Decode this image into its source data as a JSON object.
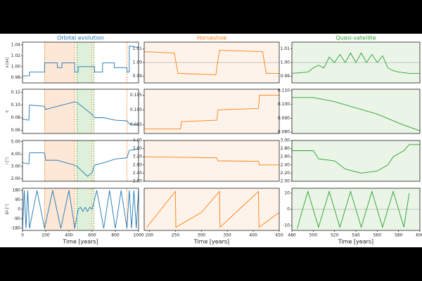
{
  "chart_data": [
    {
      "type": "line",
      "title": "Orbital evolution",
      "ylabel": "a [au]",
      "color": "#1f77b4",
      "xlim": [
        0,
        1000
      ],
      "ylim": [
        0.97,
        1.045
      ],
      "yticks": [
        0.98,
        {
          "value": 1,
          "label": "1.00"
        },
        1.02,
        1.04
      ],
      "x": [
        0,
        60,
        60,
        190,
        190,
        300,
        300,
        340,
        340,
        450,
        450,
        480,
        480,
        620,
        620,
        690,
        690,
        790,
        790,
        900,
        900,
        920,
        920,
        1000
      ],
      "values": [
        0.983,
        0.983,
        0.99,
        0.99,
        1.007,
        1.007,
        0.998,
        0.998,
        1.007,
        1.007,
        0.99,
        0.99,
        1.0,
        1.0,
        0.99,
        0.99,
        1.007,
        1.007,
        0.998,
        0.998,
        0.99,
        0.99,
        1.038,
        1.035
      ],
      "spans": [
        {
          "range": [
            190,
            450
          ],
          "color": "#fde7d7"
        },
        {
          "range": [
            470,
            600
          ],
          "color": "#dff0da"
        }
      ],
      "vlines": [
        {
          "x": 190,
          "color": "#ff7f0e"
        },
        {
          "x": 450,
          "color": "#ff7f0e"
        },
        {
          "x": 470,
          "color": "#2ca02c"
        },
        {
          "x": 600,
          "color": "#ff7f0e"
        },
        {
          "x": 615,
          "color": "#2ca02c"
        },
        {
          "x": 900,
          "color": "#ff7f0e"
        }
      ]
    },
    {
      "type": "line",
      "title": "Horseshoe",
      "color": "#ff7f0e",
      "background": "#fef3ea",
      "hline": 1,
      "xlim": [
        190,
        450
      ],
      "ylim": [
        0.985,
        1.015
      ],
      "yticks": [
        0.99,
        {
          "value": 1,
          "label": "1.00"
        },
        1.01
      ],
      "x": [
        190,
        248,
        255,
        328,
        335,
        418,
        425,
        450
      ],
      "values": [
        1.008,
        1.007,
        0.992,
        0.991,
        1.009,
        1.008,
        0.992,
        0.992
      ]
    },
    {
      "type": "line",
      "title": "Quasi-satellite",
      "color": "#2ca02c",
      "background": "#eaf5e8",
      "hline": 1,
      "xlim": [
        480,
        600
      ],
      "ylim": [
        0.985,
        1.015
      ],
      "yticks": [
        0.99,
        {
          "value": 1,
          "label": "1.00"
        },
        1.01
      ],
      "x": [
        480,
        495,
        500,
        505,
        510,
        515,
        520,
        525,
        530,
        535,
        540,
        545,
        550,
        555,
        560,
        565,
        570,
        575,
        580,
        590,
        600
      ],
      "values": [
        0.992,
        0.993,
        0.996,
        0.998,
        0.996,
        1.004,
        1.0,
        1.006,
        1.0,
        1.007,
        1.0,
        1.007,
        1.0,
        1.006,
        1.0,
        1.005,
        0.996,
        0.994,
        0.993,
        0.992,
        0.992
      ]
    },
    {
      "type": "line",
      "ylabel": "e",
      "color": "#1f77b4",
      "xlim": [
        0,
        1000
      ],
      "ylim": [
        0.055,
        0.125
      ],
      "yticks": [
        {
          "value": 0.06,
          "label": "0.06"
        },
        {
          "value": 0.08,
          "label": "0.08"
        },
        {
          "value": 0.1,
          "label": "0.10"
        },
        0.12
      ],
      "x": [
        0,
        55,
        60,
        190,
        200,
        300,
        450,
        470,
        600,
        620,
        700,
        800,
        900,
        920,
        1000
      ],
      "values": [
        0.078,
        0.076,
        0.1,
        0.098,
        0.093,
        0.098,
        0.105,
        0.104,
        0.085,
        0.08,
        0.08,
        0.076,
        0.075,
        0.07,
        0.068
      ],
      "spans": [
        {
          "range": [
            190,
            450
          ],
          "color": "#fde7d7"
        },
        {
          "range": [
            470,
            600
          ],
          "color": "#dff0da"
        }
      ],
      "vlines": [
        {
          "x": 190,
          "color": "#ff7f0e"
        },
        {
          "x": 450,
          "color": "#ff7f0e"
        },
        {
          "x": 470,
          "color": "#2ca02c"
        },
        {
          "x": 600,
          "color": "#ff7f0e"
        },
        {
          "x": 615,
          "color": "#2ca02c"
        },
        {
          "x": 900,
          "color": "#ff7f0e"
        }
      ]
    },
    {
      "type": "line",
      "color": "#ff7f0e",
      "background": "#fef3ea",
      "xlim": [
        190,
        450
      ],
      "ylim": [
        0.092,
        0.107
      ],
      "yticks": [
        0.095,
        {
          "value": 0.1,
          "label": "0.100"
        },
        0.105
      ],
      "x": [
        190,
        260,
        262,
        330,
        332,
        410,
        412,
        450
      ],
      "values": [
        0.0935,
        0.0935,
        0.096,
        0.0965,
        0.1,
        0.1005,
        0.105,
        0.105
      ]
    },
    {
      "type": "line",
      "color": "#2ca02c",
      "background": "#eaf5e8",
      "xlim": [
        480,
        600
      ],
      "ylim": [
        0.079,
        0.111
      ],
      "yticks": [
        {
          "value": 0.08,
          "label": "0.080"
        },
        {
          "value": 0.09,
          "label": "0.090"
        },
        {
          "value": 0.1,
          "label": "0.100"
        },
        {
          "value": 0.11,
          "label": "0.110"
        }
      ],
      "x": [
        480,
        500,
        520,
        560,
        585,
        600
      ],
      "values": [
        0.105,
        0.105,
        0.102,
        0.093,
        0.085,
        0.081
      ]
    },
    {
      "type": "line",
      "ylabel": "i [°]",
      "color": "#1f77b4",
      "xlim": [
        0,
        1000
      ],
      "ylim": [
        1.8,
        5.1
      ],
      "yticks": [
        {
          "value": 2,
          "label": "2.00"
        },
        {
          "value": 3,
          "label": "3.00"
        },
        {
          "value": 4,
          "label": "4.00"
        },
        {
          "value": 5,
          "label": "5.00"
        }
      ],
      "x": [
        0,
        55,
        60,
        190,
        200,
        300,
        450,
        470,
        560,
        600,
        620,
        700,
        800,
        900,
        920,
        1000
      ],
      "values": [
        3.3,
        3.2,
        4.1,
        4.1,
        3.5,
        3.5,
        3.1,
        3.0,
        2.2,
        2.5,
        3.1,
        3.3,
        3.6,
        3.7,
        4.3,
        4.4
      ],
      "spans": [
        {
          "range": [
            190,
            450
          ],
          "color": "#fde7d7"
        },
        {
          "range": [
            470,
            600
          ],
          "color": "#dff0da"
        }
      ],
      "vlines": [
        {
          "x": 190,
          "color": "#ff7f0e"
        },
        {
          "x": 450,
          "color": "#ff7f0e"
        },
        {
          "x": 470,
          "color": "#2ca02c"
        },
        {
          "x": 600,
          "color": "#ff7f0e"
        },
        {
          "x": 615,
          "color": "#2ca02c"
        },
        {
          "x": 900,
          "color": "#ff7f0e"
        }
      ]
    },
    {
      "type": "line",
      "color": "#ff7f0e",
      "background": "#fef3ea",
      "xlim": [
        190,
        450
      ],
      "ylim": [
        2,
        4
      ],
      "yticks": [
        {
          "value": 2,
          "label": "2.00"
        },
        {
          "value": 2.4,
          "label": "2.40"
        },
        {
          "value": 2.8,
          "label": "2.80"
        },
        {
          "value": 3.2,
          "label": "3.20"
        },
        {
          "value": 3.6,
          "label": "3.60"
        },
        {
          "value": 4,
          "label": "4.00"
        }
      ],
      "x": [
        190,
        250,
        330,
        332,
        410,
        412,
        450
      ],
      "values": [
        3.2,
        3.18,
        3.15,
        3.0,
        2.98,
        2.8,
        2.8
      ]
    },
    {
      "type": "line",
      "color": "#2ca02c",
      "background": "#eaf5e8",
      "xlim": [
        480,
        600
      ],
      "ylim": [
        2,
        3
      ],
      "yticks": [
        {
          "value": 2,
          "label": "2.00"
        },
        {
          "value": 2.2,
          "label": "2.20"
        },
        {
          "value": 2.4,
          "label": "2.40"
        },
        {
          "value": 2.6,
          "label": "2.60"
        },
        {
          "value": 2.8,
          "label": "2.80"
        },
        {
          "value": 3,
          "label": "3.00"
        }
      ],
      "x": [
        480,
        500,
        505,
        520,
        530,
        545,
        560,
        570,
        575,
        585,
        590,
        600
      ],
      "values": [
        2.75,
        2.75,
        2.55,
        2.5,
        2.3,
        2.2,
        2.25,
        2.4,
        2.6,
        2.75,
        2.9,
        2.9
      ]
    },
    {
      "type": "line",
      "ylabel": "Δλ [°]",
      "xlabel": "Time [years]",
      "color": "#1f77b4",
      "xlim": [
        0,
        1000
      ],
      "ylim": [
        -200,
        200
      ],
      "yticks": [
        -180,
        -90,
        0,
        90,
        180
      ],
      "xticks": [
        0,
        200,
        400,
        600,
        800,
        1000
      ],
      "x": [
        0,
        15,
        30,
        45,
        60,
        125,
        190,
        260,
        330,
        400,
        450,
        480,
        500,
        520,
        540,
        560,
        580,
        600,
        640,
        700,
        750,
        800,
        850,
        900,
        920,
        940,
        960,
        980,
        1000
      ],
      "values": [
        -180,
        180,
        -180,
        180,
        -180,
        180,
        -180,
        180,
        -180,
        180,
        -180,
        0,
        20,
        -20,
        20,
        -20,
        20,
        0,
        180,
        -180,
        180,
        -180,
        180,
        -180,
        180,
        -180,
        180,
        -180,
        180
      ],
      "spans": [
        {
          "range": [
            190,
            450
          ],
          "color": "#fde7d7"
        },
        {
          "range": [
            470,
            600
          ],
          "color": "#dff0da"
        }
      ],
      "vlines": [
        {
          "x": 190,
          "color": "#ff7f0e"
        },
        {
          "x": 450,
          "color": "#ff7f0e"
        },
        {
          "x": 470,
          "color": "#2ca02c"
        },
        {
          "x": 600,
          "color": "#ff7f0e"
        },
        {
          "x": 615,
          "color": "#2ca02c"
        },
        {
          "x": 900,
          "color": "#ff7f0e"
        }
      ]
    },
    {
      "type": "line",
      "xlabel": "Time [years]",
      "color": "#ff7f0e",
      "background": "#fef3ea",
      "xlim": [
        190,
        450
      ],
      "ylim": [
        -200,
        200
      ],
      "xticks": [
        200,
        250,
        300,
        350,
        400,
        450
      ],
      "x": [
        195,
        250,
        251,
        300,
        335,
        336,
        410,
        411,
        450
      ],
      "values": [
        -170,
        170,
        -170,
        -30,
        170,
        -170,
        170,
        -170,
        -30
      ]
    },
    {
      "type": "line",
      "xlabel": "Time [years]",
      "color": "#2ca02c",
      "background": "#eaf5e8",
      "hline": 0,
      "xlim": [
        480,
        600
      ],
      "ylim": [
        -13,
        13
      ],
      "yticks": [
        -10,
        0,
        10
      ],
      "xticks": [
        480,
        500,
        520,
        540,
        560,
        580,
        600
      ],
      "x": [
        485,
        490,
        495,
        500,
        505,
        510,
        515,
        520,
        525,
        530,
        535,
        540,
        545,
        550,
        555,
        560,
        565,
        570,
        575,
        580,
        585,
        590
      ],
      "values": [
        -12,
        0,
        11,
        0,
        -11,
        0,
        11,
        0,
        -11,
        0,
        11,
        0,
        -11,
        0,
        11,
        0,
        -11,
        0,
        11,
        0,
        -11,
        10
      ]
    }
  ]
}
